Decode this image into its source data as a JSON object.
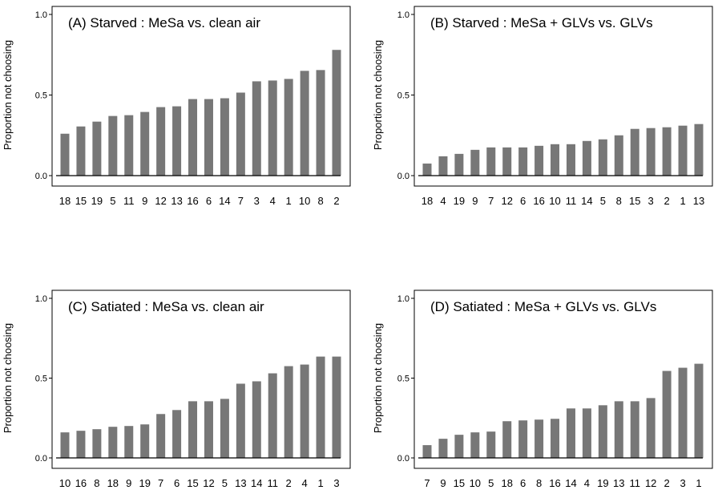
{
  "chart_data": [
    {
      "type": "bar",
      "title": "(A) Starved : MeSa vs. clean air",
      "ylabel": "Proportion not choosing",
      "xlabel": "",
      "ylim": [
        0,
        1.0
      ],
      "yticks": [
        "0.0",
        "0.5",
        "1.0"
      ],
      "categories": [
        "18",
        "15",
        "19",
        "5",
        "11",
        "9",
        "12",
        "13",
        "16",
        "6",
        "14",
        "7",
        "3",
        "4",
        "1",
        "10",
        "8",
        "2"
      ],
      "values": [
        0.26,
        0.305,
        0.335,
        0.37,
        0.375,
        0.395,
        0.425,
        0.43,
        0.475,
        0.475,
        0.48,
        0.515,
        0.585,
        0.59,
        0.6,
        0.65,
        0.655,
        0.78
      ]
    },
    {
      "type": "bar",
      "title": "(B) Starved : MeSa + GLVs vs. GLVs",
      "ylabel": "Proportion not choosing",
      "xlabel": "",
      "ylim": [
        0,
        1.0
      ],
      "yticks": [
        "0.0",
        "0.5",
        "1.0"
      ],
      "categories": [
        "18",
        "4",
        "19",
        "9",
        "7",
        "12",
        "6",
        "16",
        "10",
        "11",
        "14",
        "5",
        "8",
        "15",
        "3",
        "2",
        "1",
        "13"
      ],
      "values": [
        0.075,
        0.12,
        0.135,
        0.16,
        0.175,
        0.175,
        0.175,
        0.185,
        0.195,
        0.195,
        0.215,
        0.225,
        0.25,
        0.29,
        0.295,
        0.3,
        0.31,
        0.32
      ]
    },
    {
      "type": "bar",
      "title": "(C) Satiated : MeSa vs. clean air",
      "ylabel": "Proportion not choosing",
      "xlabel": "",
      "ylim": [
        0,
        1.0
      ],
      "yticks": [
        "0.0",
        "0.5",
        "1.0"
      ],
      "categories": [
        "10",
        "16",
        "8",
        "18",
        "9",
        "19",
        "7",
        "6",
        "15",
        "12",
        "5",
        "13",
        "14",
        "11",
        "2",
        "4",
        "1",
        "3"
      ],
      "values": [
        0.16,
        0.17,
        0.18,
        0.195,
        0.2,
        0.21,
        0.275,
        0.3,
        0.355,
        0.355,
        0.37,
        0.465,
        0.48,
        0.53,
        0.575,
        0.585,
        0.635,
        0.635
      ]
    },
    {
      "type": "bar",
      "title": "(D) Satiated : MeSa + GLVs vs. GLVs",
      "ylabel": "Proportion not choosing",
      "xlabel": "",
      "ylim": [
        0,
        1.0
      ],
      "yticks": [
        "0.0",
        "0.5",
        "1.0"
      ],
      "categories": [
        "7",
        "9",
        "15",
        "10",
        "5",
        "18",
        "6",
        "8",
        "16",
        "14",
        "4",
        "19",
        "13",
        "11",
        "12",
        "2",
        "3",
        "1"
      ],
      "values": [
        0.08,
        0.12,
        0.145,
        0.16,
        0.165,
        0.23,
        0.235,
        0.24,
        0.245,
        0.31,
        0.31,
        0.33,
        0.355,
        0.355,
        0.375,
        0.545,
        0.565,
        0.59
      ]
    }
  ]
}
